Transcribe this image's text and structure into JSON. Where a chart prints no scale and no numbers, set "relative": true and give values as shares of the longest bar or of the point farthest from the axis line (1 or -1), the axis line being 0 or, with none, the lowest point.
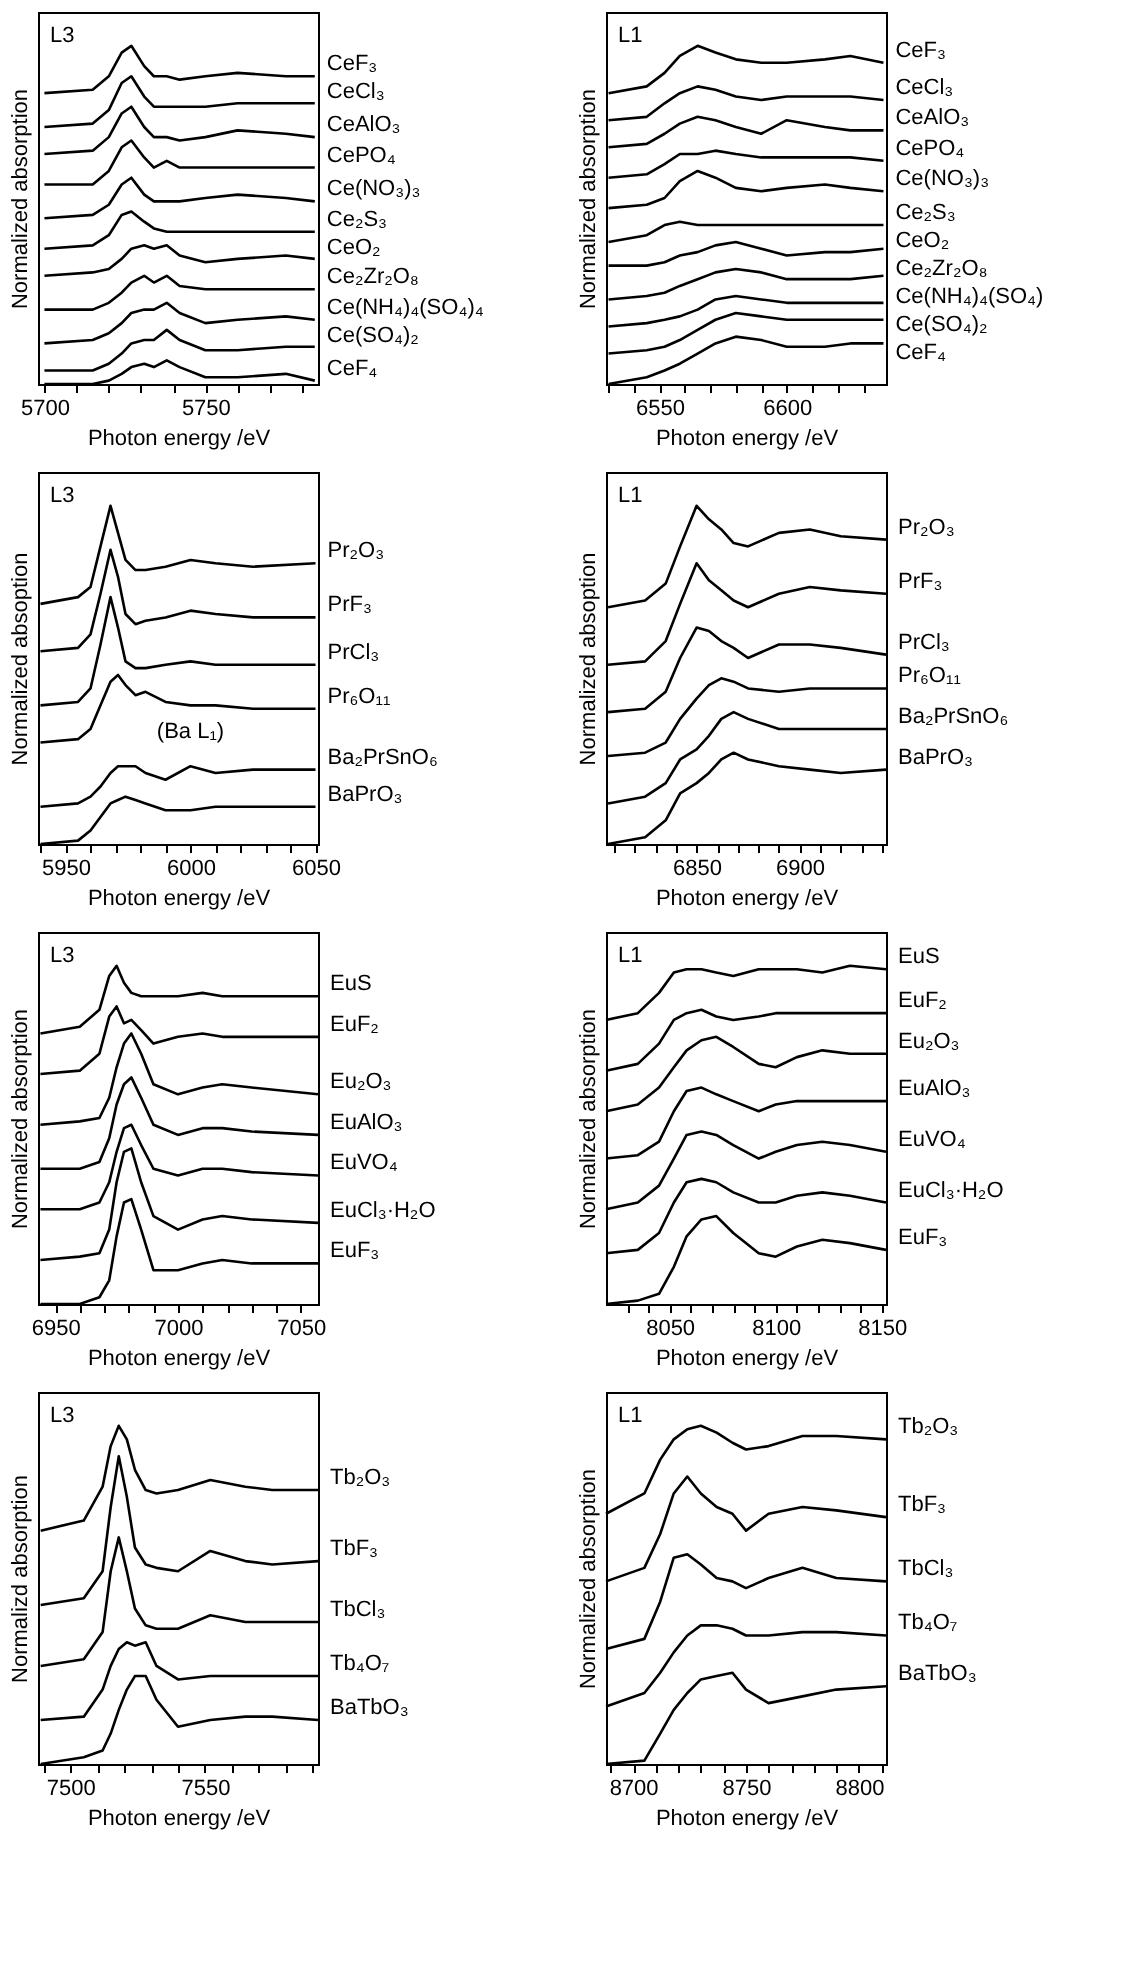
{
  "chart_data": [
    {
      "type": "line",
      "relative": true,
      "xlabel": "Photon energy /eV",
      "ylabel": "Normalized absorption",
      "annotations": [
        "L3"
      ],
      "xlim": [
        5698,
        5785
      ],
      "xticks": [
        5700,
        {
          "value": 5710,
          "label": null
        },
        {
          "value": 5720,
          "label": null
        },
        {
          "value": 5730,
          "label": null
        },
        {
          "value": 5740,
          "label": null
        },
        5750,
        {
          "value": 5760,
          "label": null
        },
        {
          "value": 5770,
          "label": null
        },
        {
          "value": 5780,
          "label": null
        }
      ],
      "x": [
        5700,
        5715,
        5720,
        5724,
        5727,
        5731,
        5734,
        5738,
        5742,
        5750,
        5760,
        5775,
        5784
      ],
      "series": [
        {
          "name": "CeF₃",
          "color": "#000000",
          "values": [
            0.86,
            0.87,
            0.91,
            0.98,
            1.0,
            0.94,
            0.91,
            0.91,
            0.9,
            0.91,
            0.92,
            0.91,
            0.91
          ]
        },
        {
          "name": "CeCl₃",
          "color": "#000000",
          "values": [
            0.76,
            0.77,
            0.81,
            0.89,
            0.91,
            0.85,
            0.82,
            0.82,
            0.82,
            0.82,
            0.83,
            0.83,
            0.83
          ]
        },
        {
          "name": "CeAlO₃",
          "color": "#000000",
          "values": [
            0.68,
            0.69,
            0.73,
            0.8,
            0.82,
            0.76,
            0.73,
            0.73,
            0.72,
            0.73,
            0.75,
            0.74,
            0.73
          ]
        },
        {
          "name": "CePO₄",
          "color": "#000000",
          "values": [
            0.59,
            0.59,
            0.63,
            0.7,
            0.72,
            0.67,
            0.64,
            0.66,
            0.64,
            0.64,
            0.64,
            0.64,
            0.64
          ]
        },
        {
          "name": "Ce(NO₃)₃",
          "color": "#000000",
          "values": [
            0.49,
            0.5,
            0.53,
            0.59,
            0.61,
            0.56,
            0.54,
            0.54,
            0.54,
            0.55,
            0.56,
            0.55,
            0.54
          ]
        },
        {
          "name": "Ce₂S₃",
          "color": "#000000",
          "values": [
            0.4,
            0.41,
            0.44,
            0.5,
            0.51,
            0.48,
            0.46,
            0.45,
            0.45,
            0.45,
            0.45,
            0.45,
            0.45
          ]
        },
        {
          "name": "CeO₂",
          "color": "#000000",
          "values": [
            0.32,
            0.33,
            0.34,
            0.37,
            0.4,
            0.41,
            0.4,
            0.41,
            0.38,
            0.36,
            0.37,
            0.38,
            0.37
          ]
        },
        {
          "name": "Ce₂Zr₂O₈",
          "color": "#000000",
          "values": [
            0.22,
            0.22,
            0.24,
            0.27,
            0.3,
            0.32,
            0.3,
            0.32,
            0.29,
            0.28,
            0.28,
            0.28,
            0.28
          ]
        },
        {
          "name": "Ce(NH₄)₄(SO₄)₄",
          "color": "#000000",
          "values": [
            0.12,
            0.13,
            0.15,
            0.18,
            0.21,
            0.22,
            0.22,
            0.24,
            0.21,
            0.18,
            0.19,
            0.2,
            0.19
          ]
        },
        {
          "name": "Ce(SO₄)₂",
          "color": "#000000",
          "values": [
            0.04,
            0.04,
            0.06,
            0.09,
            0.12,
            0.13,
            0.13,
            0.16,
            0.13,
            0.1,
            0.1,
            0.11,
            0.11
          ]
        },
        {
          "name": "CeF₄",
          "color": "#000000",
          "values": [
            0,
            0,
            0.01,
            0.03,
            0.05,
            0.06,
            0.05,
            0.07,
            0.05,
            0.02,
            0.02,
            0.03,
            0.01
          ]
        }
      ]
    },
    {
      "type": "line",
      "relative": true,
      "xlabel": "Photon energy /eV",
      "ylabel": "Normalized absorption",
      "annotations": [
        "L1"
      ],
      "xlim": [
        6529,
        6639
      ],
      "xticks": [
        {
          "value": 6530,
          "label": null
        },
        {
          "value": 6540,
          "label": null
        },
        6550,
        {
          "value": 6560,
          "label": null
        },
        {
          "value": 6570,
          "label": null
        },
        {
          "value": 6580,
          "label": null
        },
        {
          "value": 6590,
          "label": null
        },
        6600,
        {
          "value": 6610,
          "label": null
        },
        {
          "value": 6620,
          "label": null
        },
        {
          "value": 6630,
          "label": null
        }
      ],
      "x": [
        6530,
        6545,
        6552,
        6558,
        6565,
        6572,
        6580,
        6590,
        6600,
        6615,
        6625,
        6638
      ],
      "series": [
        {
          "name": "CeF₃",
          "color": "#000000",
          "values": [
            0.86,
            0.88,
            0.92,
            0.97,
            1.0,
            0.98,
            0.96,
            0.95,
            0.95,
            0.96,
            0.97,
            0.95
          ]
        },
        {
          "name": "CeCl₃",
          "color": "#000000",
          "values": [
            0.78,
            0.79,
            0.83,
            0.86,
            0.88,
            0.87,
            0.85,
            0.84,
            0.85,
            0.85,
            0.85,
            0.84
          ]
        },
        {
          "name": "CeAlO₃",
          "color": "#000000",
          "values": [
            0.7,
            0.71,
            0.74,
            0.77,
            0.79,
            0.78,
            0.76,
            0.74,
            0.78,
            0.76,
            0.75,
            0.75
          ]
        },
        {
          "name": "CePO₄",
          "color": "#000000",
          "values": [
            0.61,
            0.62,
            0.65,
            0.68,
            0.68,
            0.69,
            0.68,
            0.67,
            0.67,
            0.67,
            0.67,
            0.66
          ]
        },
        {
          "name": "Ce(NO₃)₃",
          "color": "#000000",
          "values": [
            0.52,
            0.53,
            0.55,
            0.6,
            0.63,
            0.61,
            0.58,
            0.57,
            0.58,
            0.59,
            0.58,
            0.57
          ]
        },
        {
          "name": "Ce₂S₃",
          "color": "#000000",
          "values": [
            0.42,
            0.44,
            0.47,
            0.48,
            0.47,
            0.47,
            0.47,
            0.47,
            0.47,
            0.47,
            0.47,
            0.47
          ]
        },
        {
          "name": "CeO₂",
          "color": "#000000",
          "values": [
            0.35,
            0.35,
            0.36,
            0.38,
            0.39,
            0.41,
            0.42,
            0.4,
            0.38,
            0.39,
            0.39,
            0.4
          ]
        },
        {
          "name": "Ce₂Zr₂O₈",
          "color": "#000000",
          "values": [
            0.25,
            0.26,
            0.27,
            0.29,
            0.31,
            0.33,
            0.34,
            0.33,
            0.31,
            0.31,
            0.31,
            0.32
          ]
        },
        {
          "name": "Ce(NH₄)₄(SO₄)",
          "color": "#000000",
          "values": [
            0.17,
            0.18,
            0.19,
            0.2,
            0.22,
            0.25,
            0.26,
            0.25,
            0.24,
            0.24,
            0.24,
            0.24
          ]
        },
        {
          "name": "Ce(SO₄)₂",
          "color": "#000000",
          "values": [
            0.09,
            0.1,
            0.11,
            0.13,
            0.16,
            0.19,
            0.21,
            0.2,
            0.19,
            0.19,
            0.19,
            0.19
          ]
        },
        {
          "name": "CeF₄",
          "color": "#000000",
          "values": [
            0,
            0.02,
            0.04,
            0.06,
            0.09,
            0.12,
            0.14,
            0.13,
            0.11,
            0.11,
            0.12,
            0.12
          ]
        }
      ]
    },
    {
      "type": "line",
      "relative": true,
      "xlabel": "Photon energy /eV",
      "ylabel": "Normalized absoption",
      "annotations": [
        "L3",
        {
          "text": "(Ba L₁)",
          "x": 6000,
          "y": 0.23
        }
      ],
      "xlim": [
        5939,
        6051
      ],
      "xticks": [
        {
          "value": 5940,
          "label": null
        },
        5950,
        {
          "value": 5960,
          "label": null
        },
        {
          "value": 5970,
          "label": null
        },
        {
          "value": 5980,
          "label": null
        },
        {
          "value": 5990,
          "label": null
        },
        6000,
        {
          "value": 6010,
          "label": null
        },
        {
          "value": 6020,
          "label": null
        },
        {
          "value": 6030,
          "label": null
        },
        {
          "value": 6040,
          "label": null
        },
        6050
      ],
      "x": [
        5940,
        5955,
        5960,
        5964,
        5968,
        5971,
        5974,
        5978,
        5982,
        5990,
        6000,
        6010,
        6025,
        6050
      ],
      "series": [
        {
          "name": "Pr₂O₃",
          "color": "#000000",
          "values": [
            0.71,
            0.73,
            0.76,
            0.88,
            1.0,
            0.92,
            0.84,
            0.81,
            0.81,
            0.82,
            0.84,
            0.83,
            0.82,
            0.83
          ]
        },
        {
          "name": "PrF₃",
          "color": "#000000",
          "values": [
            0.57,
            0.58,
            0.62,
            0.74,
            0.87,
            0.79,
            0.68,
            0.65,
            0.66,
            0.67,
            0.69,
            0.68,
            0.67,
            0.67
          ]
        },
        {
          "name": "PrCl₃",
          "color": "#000000",
          "values": [
            0.41,
            0.42,
            0.46,
            0.59,
            0.73,
            0.64,
            0.54,
            0.52,
            0.52,
            0.53,
            0.54,
            0.53,
            0.53,
            0.53
          ]
        },
        {
          "name": "Pr₆O₁₁",
          "color": "#000000",
          "values": [
            0.3,
            0.31,
            0.34,
            0.41,
            0.48,
            0.5,
            0.47,
            0.44,
            0.45,
            0.42,
            0.41,
            0.41,
            0.4,
            0.4
          ]
        },
        {
          "name": "Ba₂PrSnO₆",
          "color": "#000000",
          "values": [
            0.11,
            0.12,
            0.14,
            0.17,
            0.21,
            0.23,
            0.23,
            0.23,
            0.21,
            0.19,
            0.23,
            0.21,
            0.22,
            0.22
          ]
        },
        {
          "name": "BaPrO₃",
          "color": "#000000",
          "values": [
            0,
            0.01,
            0.04,
            0.08,
            0.12,
            0.13,
            0.14,
            0.13,
            0.12,
            0.1,
            0.1,
            0.11,
            0.11,
            0.11
          ]
        }
      ]
    },
    {
      "type": "line",
      "relative": true,
      "xlabel": "Photon energy /eV",
      "ylabel": "Normalized absoption",
      "annotations": [
        "L1"
      ],
      "xlim": [
        6806,
        6942
      ],
      "xticks": [
        {
          "value": 6810,
          "label": null
        },
        {
          "value": 6820,
          "label": null
        },
        {
          "value": 6830,
          "label": null
        },
        {
          "value": 6840,
          "label": null
        },
        6850,
        {
          "value": 6860,
          "label": null
        },
        {
          "value": 6870,
          "label": null
        },
        {
          "value": 6880,
          "label": null
        },
        {
          "value": 6890,
          "label": null
        },
        6900,
        {
          "value": 6910,
          "label": null
        },
        {
          "value": 6920,
          "label": null
        },
        {
          "value": 6930,
          "label": null
        },
        {
          "value": 6940,
          "label": null
        }
      ],
      "x": [
        6807,
        6825,
        6835,
        6842,
        6850,
        6856,
        6862,
        6868,
        6875,
        6890,
        6905,
        6920,
        6942
      ],
      "series": [
        {
          "name": "Pr₂O₃",
          "color": "#000000",
          "values": [
            0.7,
            0.72,
            0.77,
            0.88,
            1.0,
            0.96,
            0.93,
            0.89,
            0.88,
            0.92,
            0.93,
            0.91,
            0.9
          ]
        },
        {
          "name": "PrF₃",
          "color": "#000000",
          "values": [
            0.53,
            0.54,
            0.6,
            0.71,
            0.83,
            0.78,
            0.75,
            0.72,
            0.7,
            0.74,
            0.76,
            0.75,
            0.74
          ]
        },
        {
          "name": "PrCl₃",
          "color": "#000000",
          "values": [
            0.39,
            0.4,
            0.45,
            0.55,
            0.64,
            0.63,
            0.6,
            0.58,
            0.55,
            0.59,
            0.59,
            0.58,
            0.56
          ]
        },
        {
          "name": "Pr₆O₁₁",
          "color": "#000000",
          "values": [
            0.26,
            0.27,
            0.3,
            0.37,
            0.43,
            0.47,
            0.49,
            0.48,
            0.46,
            0.45,
            0.46,
            0.46,
            0.46
          ]
        },
        {
          "name": "Ba₂PrSnO₆",
          "color": "#000000",
          "values": [
            0.12,
            0.14,
            0.18,
            0.25,
            0.28,
            0.32,
            0.37,
            0.39,
            0.37,
            0.34,
            0.34,
            0.34,
            0.34
          ]
        },
        {
          "name": "BaPrO₃",
          "color": "#000000",
          "values": [
            0,
            0.02,
            0.07,
            0.15,
            0.18,
            0.21,
            0.25,
            0.27,
            0.25,
            0.23,
            0.22,
            0.21,
            0.22
          ]
        }
      ]
    },
    {
      "type": "line",
      "relative": true,
      "xlabel": "Photon energy /eV",
      "ylabel": "Normalized absorption",
      "annotations": [
        "L3"
      ],
      "xlim": [
        6943,
        7057
      ],
      "xticks": [
        6950,
        {
          "value": 6960,
          "label": null
        },
        {
          "value": 6970,
          "label": null
        },
        {
          "value": 6980,
          "label": null
        },
        {
          "value": 6990,
          "label": null
        },
        7000,
        {
          "value": 7010,
          "label": null
        },
        {
          "value": 7020,
          "label": null
        },
        {
          "value": 7030,
          "label": null
        },
        {
          "value": 7040,
          "label": null
        },
        7050
      ],
      "x": [
        6944,
        6960,
        6968,
        6972,
        6975,
        6978,
        6981,
        6985,
        6990,
        7000,
        7010,
        7018,
        7030,
        7057
      ],
      "series": [
        {
          "name": "EuS",
          "color": "#000000",
          "values": [
            0.8,
            0.82,
            0.87,
            0.97,
            1.0,
            0.95,
            0.92,
            0.91,
            0.91,
            0.91,
            0.92,
            0.91,
            0.91,
            0.91
          ]
        },
        {
          "name": "EuF₂",
          "color": "#000000",
          "values": [
            0.68,
            0.69,
            0.74,
            0.85,
            0.88,
            0.83,
            0.84,
            0.81,
            0.77,
            0.79,
            0.8,
            0.79,
            0.79,
            0.79
          ]
        },
        {
          "name": "Eu₂O₃",
          "color": "#000000",
          "values": [
            0.53,
            0.54,
            0.55,
            0.61,
            0.7,
            0.77,
            0.8,
            0.74,
            0.65,
            0.62,
            0.64,
            0.65,
            0.64,
            0.62
          ]
        },
        {
          "name": "EuAlO₃",
          "color": "#000000",
          "values": [
            0.4,
            0.4,
            0.42,
            0.49,
            0.59,
            0.65,
            0.67,
            0.61,
            0.53,
            0.5,
            0.52,
            0.52,
            0.51,
            0.5
          ]
        },
        {
          "name": "EuVO₄",
          "color": "#000000",
          "values": [
            0.28,
            0.28,
            0.3,
            0.36,
            0.45,
            0.52,
            0.53,
            0.47,
            0.4,
            0.38,
            0.4,
            0.4,
            0.39,
            0.38
          ]
        },
        {
          "name": "EuCl₃·H₂O",
          "color": "#000000",
          "values": [
            0.13,
            0.14,
            0.15,
            0.22,
            0.36,
            0.45,
            0.46,
            0.36,
            0.26,
            0.22,
            0.25,
            0.26,
            0.25,
            0.24
          ]
        },
        {
          "name": "EuF₃",
          "color": "#000000",
          "values": [
            0,
            0,
            0.02,
            0.07,
            0.2,
            0.3,
            0.31,
            0.22,
            0.1,
            0.1,
            0.12,
            0.13,
            0.12,
            0.12
          ]
        }
      ]
    },
    {
      "type": "line",
      "relative": true,
      "xlabel": "Photon energy /eV",
      "ylabel": "Normalized absorption",
      "annotations": [
        "L1"
      ],
      "xlim": [
        8020,
        8152
      ],
      "xticks": [
        {
          "value": 8030,
          "label": null
        },
        {
          "value": 8040,
          "label": null
        },
        8050,
        {
          "value": 8060,
          "label": null
        },
        {
          "value": 8070,
          "label": null
        },
        {
          "value": 8080,
          "label": null
        },
        {
          "value": 8090,
          "label": null
        },
        8100,
        {
          "value": 8110,
          "label": null
        },
        {
          "value": 8120,
          "label": null
        },
        {
          "value": 8130,
          "label": null
        },
        {
          "value": 8140,
          "label": null
        },
        8150
      ],
      "x": [
        8020,
        8035,
        8045,
        8052,
        8058,
        8065,
        8072,
        8080,
        8092,
        8100,
        8110,
        8122,
        8135,
        8152
      ],
      "series": [
        {
          "name": "EuS",
          "color": "#000000",
          "values": [
            0.84,
            0.86,
            0.92,
            0.98,
            0.99,
            0.99,
            0.98,
            0.97,
            0.99,
            0.99,
            0.99,
            0.98,
            1.0,
            0.99
          ]
        },
        {
          "name": "EuF₂",
          "color": "#000000",
          "values": [
            0.69,
            0.71,
            0.77,
            0.84,
            0.86,
            0.87,
            0.85,
            0.84,
            0.85,
            0.86,
            0.86,
            0.86,
            0.86,
            0.86
          ]
        },
        {
          "name": "Eu₂O₃",
          "color": "#000000",
          "values": [
            0.57,
            0.59,
            0.64,
            0.7,
            0.75,
            0.78,
            0.79,
            0.76,
            0.71,
            0.7,
            0.73,
            0.75,
            0.74,
            0.74
          ]
        },
        {
          "name": "EuAlO₃",
          "color": "#000000",
          "values": [
            0.43,
            0.44,
            0.48,
            0.57,
            0.63,
            0.64,
            0.62,
            0.6,
            0.57,
            0.59,
            0.6,
            0.6,
            0.6,
            0.6
          ]
        },
        {
          "name": "EuVO₄",
          "color": "#000000",
          "values": [
            0.28,
            0.3,
            0.35,
            0.43,
            0.5,
            0.51,
            0.5,
            0.47,
            0.43,
            0.45,
            0.47,
            0.48,
            0.47,
            0.45
          ]
        },
        {
          "name": "EuCl₃·H₂O",
          "color": "#000000",
          "values": [
            0.15,
            0.16,
            0.21,
            0.3,
            0.36,
            0.37,
            0.36,
            0.33,
            0.3,
            0.3,
            0.32,
            0.33,
            0.32,
            0.3
          ]
        },
        {
          "name": "EuF₃",
          "color": "#000000",
          "values": [
            0,
            0.01,
            0.03,
            0.11,
            0.2,
            0.25,
            0.26,
            0.21,
            0.15,
            0.14,
            0.17,
            0.19,
            0.18,
            0.16
          ]
        }
      ]
    },
    {
      "type": "line",
      "relative": true,
      "xlabel": "Photon energy /eV",
      "ylabel": "Normalizd absorption",
      "annotations": [
        "L3"
      ],
      "xlim": [
        7488,
        7592
      ],
      "xticks": [
        {
          "value": 7490,
          "label": null
        },
        7500,
        {
          "value": 7510,
          "label": null
        },
        {
          "value": 7520,
          "label": null
        },
        {
          "value": 7530,
          "label": null
        },
        {
          "value": 7540,
          "label": null
        },
        7550,
        {
          "value": 7560,
          "label": null
        },
        {
          "value": 7570,
          "label": null
        },
        {
          "value": 7580,
          "label": null
        },
        {
          "value": 7590,
          "label": null
        }
      ],
      "x": [
        7489,
        7505,
        7512,
        7515,
        7518,
        7521,
        7524,
        7528,
        7532,
        7540,
        7552,
        7565,
        7575,
        7592
      ],
      "series": [
        {
          "name": "Tb₂O₃",
          "color": "#000000",
          "values": [
            0.69,
            0.72,
            0.82,
            0.94,
            1.0,
            0.96,
            0.87,
            0.81,
            0.8,
            0.81,
            0.84,
            0.82,
            0.81,
            0.81
          ]
        },
        {
          "name": "TbF₃",
          "color": "#000000",
          "values": [
            0.47,
            0.49,
            0.57,
            0.76,
            0.91,
            0.79,
            0.64,
            0.59,
            0.58,
            0.57,
            0.63,
            0.6,
            0.59,
            0.6
          ]
        },
        {
          "name": "TbCl₃",
          "color": "#000000",
          "values": [
            0.29,
            0.31,
            0.39,
            0.57,
            0.67,
            0.57,
            0.46,
            0.41,
            0.4,
            0.4,
            0.44,
            0.42,
            0.42,
            0.42
          ]
        },
        {
          "name": "Tb₄O₇",
          "color": "#000000",
          "values": [
            0.13,
            0.14,
            0.22,
            0.29,
            0.34,
            0.36,
            0.35,
            0.36,
            0.29,
            0.25,
            0.26,
            0.26,
            0.26,
            0.26
          ]
        },
        {
          "name": "BaTbO₃",
          "color": "#000000",
          "values": [
            0,
            0.02,
            0.04,
            0.09,
            0.16,
            0.22,
            0.26,
            0.26,
            0.19,
            0.11,
            0.13,
            0.14,
            0.14,
            0.13
          ]
        }
      ]
    },
    {
      "type": "line",
      "relative": true,
      "xlabel": "Photon energy /eV",
      "ylabel": "Normalized absorption",
      "annotations": [
        "L1"
      ],
      "xlim": [
        8688,
        8812
      ],
      "xticks": [
        {
          "value": 8690,
          "label": null
        },
        8700,
        {
          "value": 8710,
          "label": null
        },
        {
          "value": 8720,
          "label": null
        },
        {
          "value": 8730,
          "label": null
        },
        {
          "value": 8740,
          "label": null
        },
        8750,
        {
          "value": 8760,
          "label": null
        },
        {
          "value": 8770,
          "label": null
        },
        {
          "value": 8780,
          "label": null
        },
        {
          "value": 8790,
          "label": null
        },
        8800,
        {
          "value": 8810,
          "label": null
        }
      ],
      "x": [
        8688,
        8705,
        8712,
        8718,
        8724,
        8730,
        8737,
        8744,
        8750,
        8760,
        8775,
        8790,
        8812
      ],
      "series": [
        {
          "name": "Tb₂O₃",
          "color": "#000000",
          "values": [
            0.74,
            0.8,
            0.9,
            0.96,
            0.99,
            1.0,
            0.98,
            0.95,
            0.93,
            0.94,
            0.97,
            0.97,
            0.96
          ]
        },
        {
          "name": "TbF₃",
          "color": "#000000",
          "values": [
            0.54,
            0.58,
            0.68,
            0.8,
            0.85,
            0.8,
            0.76,
            0.74,
            0.69,
            0.74,
            0.76,
            0.75,
            0.73
          ]
        },
        {
          "name": "TbCl₃",
          "color": "#000000",
          "values": [
            0.34,
            0.37,
            0.48,
            0.61,
            0.62,
            0.59,
            0.55,
            0.54,
            0.52,
            0.55,
            0.58,
            0.55,
            0.54
          ]
        },
        {
          "name": "Tb₄O₇",
          "color": "#000000",
          "values": [
            0.17,
            0.21,
            0.27,
            0.33,
            0.38,
            0.41,
            0.41,
            0.4,
            0.38,
            0.38,
            0.39,
            0.39,
            0.38
          ]
        },
        {
          "name": "BaTbO₃",
          "color": "#000000",
          "values": [
            0,
            0.01,
            0.09,
            0.16,
            0.21,
            0.25,
            0.26,
            0.27,
            0.22,
            0.18,
            0.2,
            0.22,
            0.23
          ]
        }
      ]
    }
  ]
}
